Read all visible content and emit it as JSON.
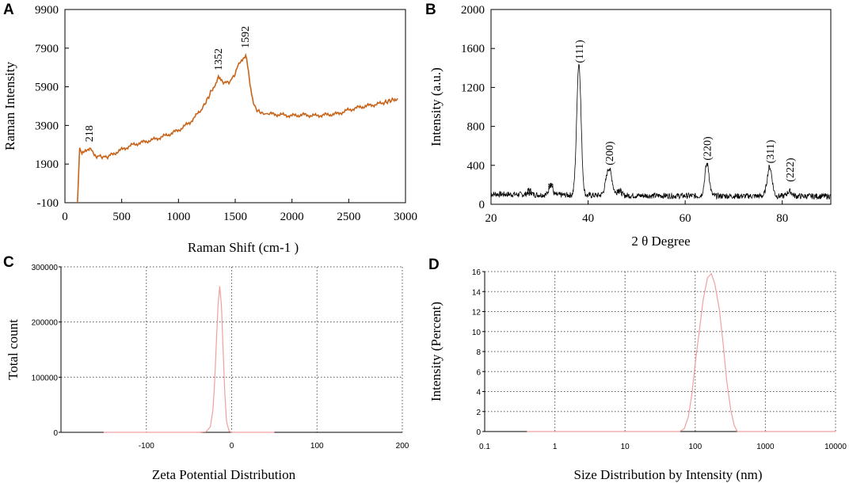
{
  "figure": {
    "panels": [
      "A",
      "B",
      "C",
      "D"
    ]
  },
  "chart_data": [
    {
      "id": "A",
      "type": "line",
      "title": "",
      "xlabel": "Raman Shift (cm-1 )",
      "ylabel": "Raman Intensity",
      "xlim": [
        0,
        3000
      ],
      "ylim": [
        -100,
        9900
      ],
      "xticks": [
        "0",
        "500",
        "1000",
        "1500",
        "2000",
        "2500",
        "3000"
      ],
      "yticks": [
        "-100",
        "1900",
        "3900",
        "5900",
        "7900",
        "9900"
      ],
      "grid": false,
      "line_color": "#c8641a",
      "annotations": [
        {
          "label": "218",
          "x": 218,
          "y": 2800
        },
        {
          "label": "1352",
          "x": 1352,
          "y": 6500
        },
        {
          "label": "1592",
          "x": 1592,
          "y": 7650
        }
      ],
      "series": [
        {
          "name": "Raman",
          "x": [
            110,
            130,
            150,
            180,
            218,
            250,
            280,
            320,
            360,
            400,
            500,
            600,
            700,
            800,
            900,
            1000,
            1100,
            1200,
            1250,
            1300,
            1330,
            1352,
            1380,
            1420,
            1460,
            1500,
            1540,
            1570,
            1592,
            1610,
            1630,
            1660,
            1700,
            1750,
            1800,
            1900,
            2000,
            2100,
            2200,
            2300,
            2400,
            2500,
            2600,
            2700,
            2800,
            2850,
            2900,
            2930
          ],
          "y": [
            -100,
            2700,
            2500,
            2650,
            2700,
            2500,
            2300,
            2300,
            2250,
            2350,
            2650,
            2900,
            3050,
            3200,
            3400,
            3650,
            4050,
            4700,
            5200,
            5800,
            6100,
            6500,
            6200,
            6100,
            6200,
            6600,
            7200,
            7400,
            7550,
            7000,
            6000,
            5000,
            4650,
            4500,
            4500,
            4450,
            4400,
            4450,
            4400,
            4450,
            4500,
            4700,
            4850,
            4950,
            5050,
            5150,
            5250,
            5300
          ]
        }
      ]
    },
    {
      "id": "B",
      "type": "line",
      "title": "",
      "xlabel": "2 θ Degree",
      "ylabel": "Intensity (a.u.)",
      "xlim": [
        20,
        90
      ],
      "ylim": [
        0,
        2000
      ],
      "xticks": [
        "20",
        "40",
        "60",
        "80"
      ],
      "yticks": [
        "0",
        "400",
        "800",
        "1200",
        "1600",
        "2000"
      ],
      "grid": false,
      "line_color": "#000000",
      "baseline": 80,
      "peaks": [
        {
          "x": 27.9,
          "height": 50,
          "width": 0.35
        },
        {
          "x": 32.3,
          "height": 120,
          "width": 0.35
        },
        {
          "x": 38.1,
          "height": 1350,
          "width": 0.45
        },
        {
          "x": 44.3,
          "height": 280,
          "width": 0.6
        },
        {
          "x": 46.4,
          "height": 60,
          "width": 0.4
        },
        {
          "x": 64.5,
          "height": 330,
          "width": 0.45
        },
        {
          "x": 77.4,
          "height": 300,
          "width": 0.5
        },
        {
          "x": 81.5,
          "height": 50,
          "width": 0.5
        }
      ],
      "annotations": [
        {
          "label": "(111)",
          "x": 38.1,
          "y": 1450
        },
        {
          "label": "(200)",
          "x": 44.3,
          "y": 400
        },
        {
          "label": "(220)",
          "x": 64.5,
          "y": 450
        },
        {
          "label": "(311)",
          "x": 77.4,
          "y": 420
        },
        {
          "label": "(222)",
          "x": 81.5,
          "y": 230
        },
        {
          "label": "*",
          "x": 27.9,
          "y": 150
        },
        {
          "label": "*",
          "x": 32.3,
          "y": 230
        },
        {
          "label": "*",
          "x": 46.4,
          "y": 170
        }
      ]
    },
    {
      "id": "C",
      "type": "line",
      "title": "",
      "xlabel": "Zeta Potential Distribution",
      "ylabel": "Total count",
      "xlim": [
        -200,
        200
      ],
      "ylim": [
        0,
        300000
      ],
      "xticks": [
        "-100",
        "0",
        "100",
        "200"
      ],
      "yticks": [
        "0",
        "100000",
        "200000",
        "300000"
      ],
      "grid": true,
      "line_color": "#f0a0a0",
      "series": [
        {
          "name": "Zeta",
          "x": [
            -150,
            -40,
            -30,
            -25,
            -22,
            -20,
            -18,
            -16,
            -14,
            -12,
            -10,
            -8,
            -6,
            -3,
            0,
            20,
            50
          ],
          "y": [
            0,
            0,
            1000,
            10000,
            40000,
            90000,
            160000,
            230000,
            265000,
            230000,
            150000,
            70000,
            20000,
            2000,
            0,
            0,
            0
          ]
        }
      ]
    },
    {
      "id": "D",
      "type": "line",
      "title": "",
      "xlabel": "Size Distribution by Intensity (nm)",
      "ylabel": "Intensity (Percent)",
      "xscale": "log",
      "xlim": [
        0.1,
        10000
      ],
      "ylim": [
        0,
        16
      ],
      "xticks": [
        "0.1",
        "1",
        "10",
        "100",
        "1000",
        "10000"
      ],
      "yticks": [
        "0",
        "2",
        "4",
        "6",
        "8",
        "10",
        "12",
        "14",
        "16"
      ],
      "grid": true,
      "line_color": "#f0a0a0",
      "series": [
        {
          "name": "Size",
          "x": [
            0.4,
            60,
            70,
            80,
            90,
            100,
            115,
            130,
            150,
            170,
            190,
            220,
            250,
            280,
            320,
            360,
            400,
            10000
          ],
          "y": [
            0,
            0,
            0.3,
            1.5,
            3.8,
            6.8,
            10.2,
            13.2,
            15.4,
            15.8,
            14.8,
            12.3,
            8.8,
            5.2,
            2.2,
            0.6,
            0,
            0
          ]
        }
      ]
    }
  ]
}
